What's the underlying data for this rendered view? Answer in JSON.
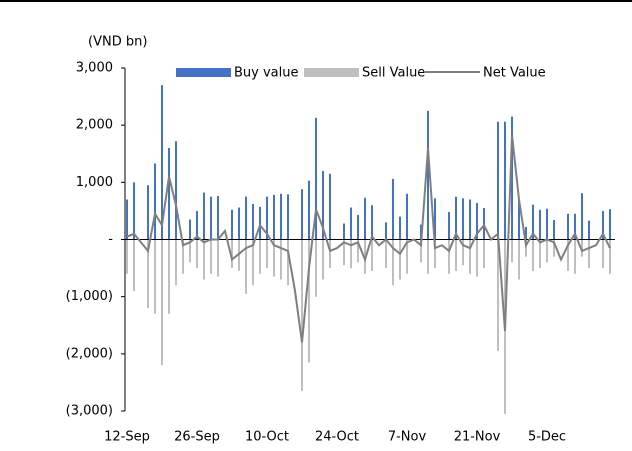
{
  "chart_data": {
    "type": "bar-line",
    "y_label": "(VND bn)",
    "categories": [
      "12-Sep",
      null,
      null,
      null,
      null,
      null,
      null,
      null,
      null,
      null,
      "26-Sep",
      null,
      null,
      null,
      null,
      null,
      null,
      null,
      null,
      null,
      "10-Oct",
      null,
      null,
      null,
      null,
      null,
      null,
      null,
      null,
      null,
      "24-Oct",
      null,
      null,
      null,
      null,
      null,
      null,
      null,
      null,
      null,
      "7-Nov",
      null,
      null,
      null,
      null,
      null,
      null,
      null,
      null,
      null,
      "21-Nov",
      null,
      null,
      null,
      null,
      null,
      null,
      null,
      null,
      null,
      "5-Dec",
      null,
      null,
      null,
      null,
      null,
      null,
      null,
      null,
      null
    ],
    "series": [
      {
        "name": "Buy value",
        "type": "bar",
        "color": "#4472c4",
        "values": [
          700,
          1000,
          0,
          950,
          1330,
          2700,
          1600,
          1720,
          0,
          350,
          500,
          820,
          750,
          760,
          0,
          520,
          560,
          750,
          620,
          570,
          750,
          780,
          800,
          790,
          0,
          880,
          1030,
          2130,
          1200,
          1150,
          0,
          280,
          560,
          430,
          730,
          600,
          0,
          300,
          1060,
          400,
          800,
          0,
          260,
          2250,
          720,
          0,
          480,
          750,
          720,
          700,
          640,
          550,
          0,
          2060,
          2060,
          2150,
          700,
          220,
          610,
          520,
          540,
          340,
          0,
          450,
          450,
          810,
          330,
          0,
          500,
          530
        ]
      },
      {
        "name": "Sell Value",
        "type": "bar",
        "color": "#bfbfbf",
        "values": [
          -600,
          -900,
          0,
          -1200,
          -1300,
          -2200,
          -1300,
          -800,
          -600,
          -400,
          -500,
          -700,
          -600,
          -650,
          0,
          -500,
          -550,
          -950,
          -800,
          -600,
          -500,
          -650,
          -700,
          -800,
          0,
          -2650,
          -2150,
          -1000,
          -700,
          -500,
          0,
          -450,
          -500,
          -400,
          -600,
          -550,
          0,
          -500,
          -800,
          -700,
          -600,
          0,
          -400,
          -600,
          -500,
          0,
          -600,
          -550,
          -450,
          -600,
          -650,
          -500,
          0,
          -1950,
          -3050,
          -400,
          -700,
          -300,
          -550,
          -500,
          -400,
          -300,
          0,
          -550,
          -600,
          -300,
          -500,
          0,
          -500,
          -600
        ]
      },
      {
        "name": "Net Value",
        "type": "line",
        "color": "#7f7f7f",
        "values": [
          50,
          100,
          -50,
          -200,
          450,
          250,
          1100,
          600,
          -100,
          -50,
          50,
          -50,
          0,
          0,
          150,
          -350,
          -250,
          -150,
          -100,
          250,
          100,
          -100,
          -150,
          -200,
          -900,
          -1800,
          -500,
          530,
          200,
          -200,
          -150,
          -50,
          -100,
          -50,
          -350,
          50,
          -100,
          0,
          -150,
          -250,
          -50,
          0,
          -100,
          1600,
          -150,
          -100,
          -200,
          100,
          -100,
          -150,
          100,
          250,
          0,
          100,
          -1600,
          1830,
          700,
          -100,
          100,
          -50,
          0,
          -50,
          -350,
          -100,
          100,
          -200,
          -150,
          -100,
          100,
          -150
        ]
      }
    ],
    "ylim": [
      -3000,
      3000
    ],
    "yticks": [
      {
        "value": -3000,
        "label": "(3,000)"
      },
      {
        "value": -2000,
        "label": "(2,000)"
      },
      {
        "value": -1000,
        "label": "(1,000)"
      },
      {
        "value": 0,
        "label": "-"
      },
      {
        "value": 1000,
        "label": "1,000"
      },
      {
        "value": 2000,
        "label": "2,000"
      },
      {
        "value": 3000,
        "label": "3,000"
      }
    ],
    "legend": "top"
  }
}
